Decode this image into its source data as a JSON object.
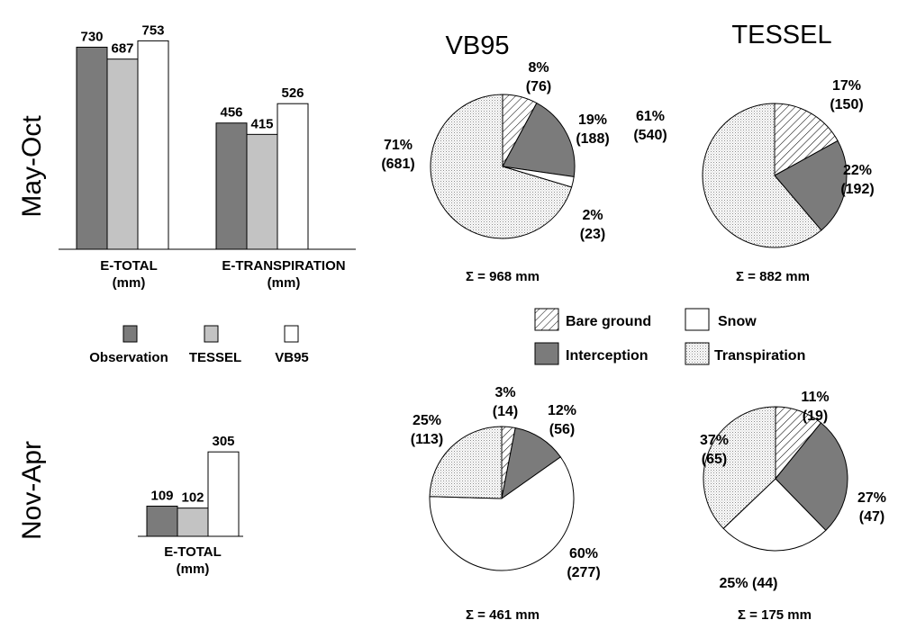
{
  "row_labels": [
    "May-Oct",
    "Nov-Apr"
  ],
  "bar_legend": {
    "items": [
      {
        "label": "Observation",
        "color": "#7b7b7b"
      },
      {
        "label": "TESSEL",
        "color": "#c3c3c3"
      },
      {
        "label": "VB95",
        "color": "#ffffff"
      }
    ]
  },
  "pie_legend": {
    "items": [
      {
        "label": "Bare ground",
        "fill": "hatch"
      },
      {
        "label": "Snow",
        "fill": "#ffffff"
      },
      {
        "label": "Interception",
        "fill": "#7b7b7b"
      },
      {
        "label": "Transpiration",
        "fill": "dots"
      }
    ]
  },
  "chart_data": [
    {
      "type": "bar",
      "panel": "May-Oct",
      "categories": [
        "E-TOTAL\n(mm)",
        "E-TRANSPIRATION\n(mm)"
      ],
      "category_lines": [
        [
          "E-TOTAL",
          "(mm)"
        ],
        [
          "E-TRANSPIRATION",
          "(mm)"
        ]
      ],
      "series": [
        {
          "name": "Observation",
          "values": [
            730,
            456
          ]
        },
        {
          "name": "TESSEL",
          "values": [
            687,
            415
          ]
        },
        {
          "name": "VB95",
          "values": [
            753,
            526
          ]
        }
      ]
    },
    {
      "type": "bar",
      "panel": "Nov-Apr",
      "categories": [
        "E-TOTAL\n(mm)"
      ],
      "category_lines": [
        [
          "E-TOTAL",
          "(mm)"
        ]
      ],
      "series": [
        {
          "name": "Observation",
          "values": [
            109
          ]
        },
        {
          "name": "TESSEL",
          "values": [
            102
          ]
        },
        {
          "name": "VB95",
          "values": [
            305
          ]
        }
      ]
    },
    {
      "type": "pie",
      "panel": "May-Oct",
      "title": "VB95",
      "total_label": "Σ = 968 mm",
      "slices": [
        {
          "name": "Bare ground",
          "value": 76,
          "percent": 8
        },
        {
          "name": "Interception",
          "value": 188,
          "percent": 19
        },
        {
          "name": "Snow",
          "value": 23,
          "percent": 2
        },
        {
          "name": "Transpiration",
          "value": 681,
          "percent": 71
        }
      ],
      "labels": [
        {
          "lines": [
            "8%",
            "(76)"
          ]
        },
        {
          "lines": [
            "19%",
            "(188)"
          ]
        },
        {
          "lines": [
            "2%",
            "(23)"
          ]
        },
        {
          "lines": [
            "71%",
            "(681)"
          ]
        }
      ]
    },
    {
      "type": "pie",
      "panel": "May-Oct",
      "title": "TESSEL",
      "total_label": "Σ  = 882 mm",
      "slices": [
        {
          "name": "Bare ground",
          "value": 150,
          "percent": 17
        },
        {
          "name": "Interception",
          "value": 192,
          "percent": 22
        },
        {
          "name": "Transpiration",
          "value": 540,
          "percent": 61
        }
      ],
      "labels": [
        {
          "lines": [
            "17%",
            "(150)"
          ]
        },
        {
          "lines": [
            "22%",
            "(192)"
          ]
        },
        {
          "lines": [
            "61%",
            "(540)"
          ]
        }
      ]
    },
    {
      "type": "pie",
      "panel": "Nov-Apr",
      "title": "",
      "total_label": "Σ = 461 mm",
      "slices": [
        {
          "name": "Bare ground",
          "value": 14,
          "percent": 3
        },
        {
          "name": "Interception",
          "value": 56,
          "percent": 12
        },
        {
          "name": "Snow",
          "value": 277,
          "percent": 60
        },
        {
          "name": "Transpiration",
          "value": 113,
          "percent": 25
        }
      ],
      "labels": [
        {
          "lines": [
            "3%",
            "(14)"
          ]
        },
        {
          "lines": [
            "12%",
            "(56)"
          ]
        },
        {
          "lines": [
            "60%",
            "(277)"
          ]
        },
        {
          "lines": [
            "25%",
            "(113)"
          ]
        }
      ]
    },
    {
      "type": "pie",
      "panel": "Nov-Apr",
      "title": "",
      "total_label": "Σ = 175 mm",
      "slices": [
        {
          "name": "Bare ground",
          "value": 19,
          "percent": 11
        },
        {
          "name": "Interception",
          "value": 47,
          "percent": 27
        },
        {
          "name": "Snow",
          "value": 44,
          "percent": 25
        },
        {
          "name": "Transpiration",
          "value": 65,
          "percent": 37
        }
      ],
      "labels": [
        {
          "lines": [
            "11%",
            "(19)"
          ]
        },
        {
          "lines": [
            "27%",
            "(47)"
          ]
        },
        {
          "lines": [
            "25% (44)"
          ]
        },
        {
          "lines": [
            "37%",
            "(65)"
          ]
        }
      ]
    }
  ]
}
